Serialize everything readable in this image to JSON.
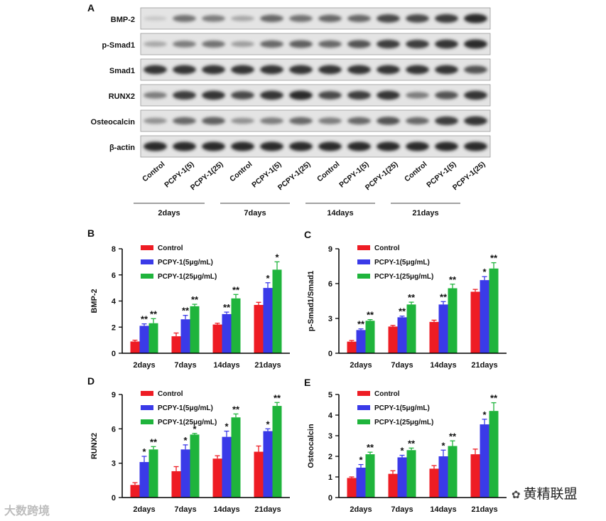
{
  "panel_a": {
    "letter": "A",
    "blots": [
      "BMP-2",
      "p-Smad1",
      "Smad1",
      "RUNX2",
      "Osteocalcin",
      "β-actin"
    ],
    "lane_labels": [
      "Control",
      "PCPY-1(5)",
      "PCPY-1(25)",
      "Control",
      "PCPY-1(5)",
      "PCPY-1(25)",
      "Control",
      "PCPY-1(5)",
      "PCPY-1(25)",
      "Control",
      "PCPY-1(5)",
      "PCPY-1(25)"
    ],
    "time_groups": [
      "2days",
      "7days",
      "14days",
      "21days"
    ],
    "band_intensity": [
      [
        0.15,
        0.55,
        0.5,
        0.3,
        0.6,
        0.55,
        0.6,
        0.6,
        0.75,
        0.75,
        0.8,
        0.9
      ],
      [
        0.3,
        0.5,
        0.55,
        0.35,
        0.6,
        0.65,
        0.6,
        0.7,
        0.8,
        0.8,
        0.85,
        0.9
      ],
      [
        0.85,
        0.85,
        0.85,
        0.85,
        0.85,
        0.85,
        0.85,
        0.85,
        0.85,
        0.85,
        0.85,
        0.7
      ],
      [
        0.5,
        0.8,
        0.85,
        0.75,
        0.85,
        0.9,
        0.75,
        0.8,
        0.85,
        0.5,
        0.7,
        0.85
      ],
      [
        0.4,
        0.6,
        0.65,
        0.4,
        0.5,
        0.6,
        0.5,
        0.6,
        0.7,
        0.6,
        0.8,
        0.85
      ],
      [
        0.9,
        0.9,
        0.9,
        0.9,
        0.9,
        0.9,
        0.9,
        0.9,
        0.9,
        0.9,
        0.9,
        0.9
      ]
    ]
  },
  "chart_data": [
    {
      "letter": "B",
      "type": "bar",
      "ylabel": "BMP-2",
      "ylim": [
        0,
        8
      ],
      "yticks": [
        "0",
        "2",
        "4",
        "6",
        "8"
      ],
      "categories": [
        "2days",
        "7days",
        "14days",
        "21days"
      ],
      "legend_position": "top-left",
      "series": [
        {
          "name": "Control",
          "color": "#ee1c24",
          "values": [
            0.9,
            1.3,
            2.2,
            3.7
          ],
          "errors": [
            0.1,
            0.25,
            0.1,
            0.2
          ],
          "sig": [
            "",
            "",
            "",
            ""
          ]
        },
        {
          "name": "PCPY-1(5μg/mL)",
          "color": "#3a3ae8",
          "values": [
            2.1,
            2.6,
            3.0,
            5.0
          ],
          "errors": [
            0.15,
            0.3,
            0.15,
            0.4
          ],
          "sig": [
            "**",
            "**",
            "**",
            "*"
          ]
        },
        {
          "name": "PCPY-1(25μg/mL)",
          "color": "#1fb43c",
          "values": [
            2.3,
            3.6,
            4.2,
            6.4
          ],
          "errors": [
            0.35,
            0.15,
            0.3,
            0.6
          ],
          "sig": [
            "**",
            "**",
            "**",
            "*"
          ]
        }
      ]
    },
    {
      "letter": "C",
      "type": "bar",
      "ylabel": "p-Smad1/Smad1",
      "ylim": [
        0,
        9
      ],
      "yticks": [
        "0",
        "3",
        "6",
        "9"
      ],
      "categories": [
        "2days",
        "7days",
        "14days",
        "21days"
      ],
      "legend_position": "top-left",
      "series": [
        {
          "name": "Control",
          "color": "#ee1c24",
          "values": [
            1.0,
            2.3,
            2.7,
            5.3
          ],
          "errors": [
            0.1,
            0.1,
            0.15,
            0.2
          ],
          "sig": [
            "",
            "",
            "",
            ""
          ]
        },
        {
          "name": "PCPY-1(5μg/mL)",
          "color": "#3a3ae8",
          "values": [
            2.0,
            3.1,
            4.2,
            6.3
          ],
          "errors": [
            0.1,
            0.1,
            0.25,
            0.3
          ],
          "sig": [
            "**",
            "**",
            "**",
            "*"
          ]
        },
        {
          "name": "PCPY-1(25μg/mL)",
          "color": "#1fb43c",
          "values": [
            2.8,
            4.2,
            5.6,
            7.3
          ],
          "errors": [
            0.1,
            0.2,
            0.35,
            0.5
          ],
          "sig": [
            "**",
            "**",
            "**",
            "**"
          ]
        }
      ]
    },
    {
      "letter": "D",
      "type": "bar",
      "ylabel": "RUNX2",
      "ylim": [
        0,
        9
      ],
      "yticks": [
        "0",
        "3",
        "6",
        "9"
      ],
      "categories": [
        "2days",
        "7days",
        "14days",
        "21days"
      ],
      "legend_position": "top-left",
      "series": [
        {
          "name": "Control",
          "color": "#ee1c24",
          "values": [
            1.1,
            2.3,
            3.4,
            4.0
          ],
          "errors": [
            0.2,
            0.4,
            0.25,
            0.5
          ],
          "sig": [
            "",
            "",
            "",
            ""
          ]
        },
        {
          "name": "PCPY-1(5μg/mL)",
          "color": "#3a3ae8",
          "values": [
            3.1,
            4.2,
            5.3,
            5.8
          ],
          "errors": [
            0.5,
            0.4,
            0.5,
            0.2
          ],
          "sig": [
            "*",
            "*",
            "*",
            "*"
          ]
        },
        {
          "name": "PCPY-1(25μg/mL)",
          "color": "#1fb43c",
          "values": [
            4.2,
            5.5,
            7.0,
            8.0
          ],
          "errors": [
            0.25,
            0.1,
            0.3,
            0.3
          ],
          "sig": [
            "**",
            "*",
            "**",
            "**"
          ]
        }
      ]
    },
    {
      "letter": "E",
      "type": "bar",
      "ylabel": "Osteocalcin",
      "ylim": [
        0,
        5
      ],
      "yticks": [
        "0",
        "1",
        "2",
        "3",
        "4",
        "5"
      ],
      "categories": [
        "2days",
        "7days",
        "14days",
        "21days"
      ],
      "legend_position": "top-left",
      "series": [
        {
          "name": "Control",
          "color": "#ee1c24",
          "values": [
            0.95,
            1.15,
            1.4,
            2.1
          ],
          "errors": [
            0.05,
            0.15,
            0.15,
            0.25
          ],
          "sig": [
            "",
            "",
            "",
            ""
          ]
        },
        {
          "name": "PCPY-1(5μg/mL)",
          "color": "#3a3ae8",
          "values": [
            1.45,
            1.95,
            2.0,
            3.55
          ],
          "errors": [
            0.15,
            0.1,
            0.3,
            0.25
          ],
          "sig": [
            "*",
            "*",
            "*",
            "*"
          ]
        },
        {
          "name": "PCPY-1(25μg/mL)",
          "color": "#1fb43c",
          "values": [
            2.1,
            2.3,
            2.5,
            4.2
          ],
          "errors": [
            0.1,
            0.1,
            0.25,
            0.4
          ],
          "sig": [
            "**",
            "**",
            "**",
            "**"
          ]
        }
      ]
    }
  ],
  "watermarks": {
    "left": "大数跨境",
    "right": "黄精联盟",
    "right_icon": "wechat-icon"
  }
}
